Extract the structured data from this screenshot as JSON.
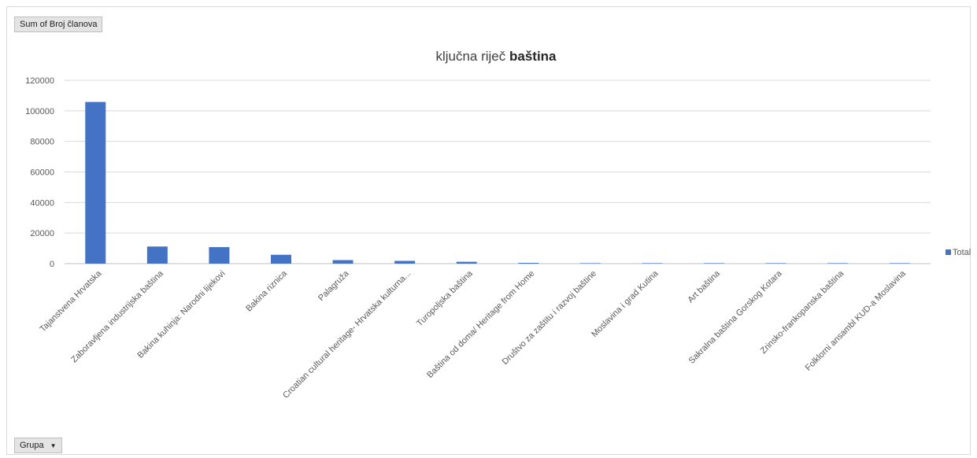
{
  "pivot": {
    "values_field_label": "Sum of Broj članova",
    "axis_field_label": "Grupa",
    "axis_field_dropdown_icon": "dropdown-arrow-icon"
  },
  "chart_data": {
    "type": "bar",
    "title_regular": "ključna riječ ",
    "title_bold": "baština",
    "categories": [
      "Tajanstvena Hrvatska",
      "Zaboravljena industrijska baština",
      "Bakina kuhinja: Narodni lijekovi",
      "Bakina riznica",
      "Palagruža",
      "Croatian cultural heritage- Hrvatska kulturna...",
      "Turopoljska baština",
      "Baština od doma/ Heritage from Home",
      "Društvo za zaštitu i razvoj baštine",
      "Moslavina i grad Kutina",
      "Art baština",
      "Sakralna baština Gorskog Kotara",
      "Zrinsko-frankopanska baština",
      "Folklorni ansambl KUD-a Moslavina"
    ],
    "series": [
      {
        "name": "Total",
        "values": [
          105800,
          11200,
          10800,
          5800,
          2300,
          1800,
          1200,
          500,
          150,
          100,
          80,
          50,
          40,
          30
        ]
      }
    ],
    "y_ticks": [
      "120000",
      "100000",
      "80000",
      "60000",
      "40000",
      "20000",
      "0"
    ],
    "ylim": [
      0,
      120000
    ],
    "grid": true,
    "legend_position": "right",
    "bar_color": "#4472c4"
  }
}
